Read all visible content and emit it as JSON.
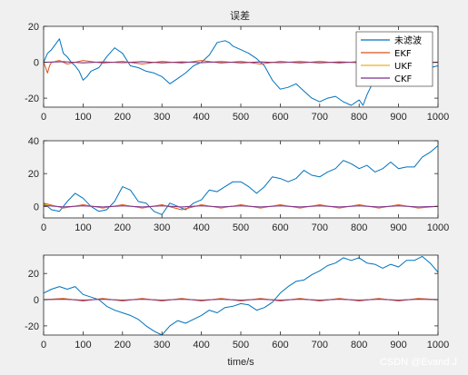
{
  "figure": {
    "title": "误差",
    "xlabel": "time/s",
    "watermark": "CSDN @Evand J"
  },
  "chart_data": [
    {
      "type": "line",
      "title": "误差",
      "xlabel": "",
      "ylabel": "",
      "xlim": [
        0,
        1000
      ],
      "ylim": [
        -25,
        20
      ],
      "xticks": [
        0,
        100,
        200,
        300,
        400,
        500,
        600,
        700,
        800,
        900,
        1000
      ],
      "yticks": [
        -20,
        0,
        20
      ],
      "legend": {
        "position": "top-right",
        "entries": [
          "未滤波",
          "EKF",
          "UKF",
          "CKF"
        ]
      },
      "series": [
        {
          "name": "未滤波",
          "color": "#0072BD",
          "x": [
            0,
            10,
            20,
            30,
            40,
            50,
            60,
            70,
            80,
            90,
            100,
            110,
            120,
            140,
            160,
            180,
            200,
            220,
            240,
            260,
            280,
            300,
            320,
            340,
            360,
            380,
            400,
            420,
            440,
            460,
            470,
            480,
            500,
            520,
            540,
            560,
            580,
            600,
            620,
            640,
            660,
            680,
            700,
            720,
            740,
            760,
            780,
            800,
            810,
            820,
            840,
            860,
            880,
            900,
            920,
            940,
            960,
            980,
            1000
          ],
          "y": [
            0,
            5,
            7,
            10,
            13,
            5,
            3,
            0,
            -2,
            -5,
            -10,
            -8,
            -5,
            -3,
            3,
            8,
            5,
            -2,
            -3,
            -5,
            -6,
            -8,
            -12,
            -9,
            -6,
            -2,
            0,
            4,
            11,
            12,
            11,
            9,
            7,
            5,
            2,
            -2,
            -10,
            -15,
            -14,
            -12,
            -16,
            -20,
            -22,
            -20,
            -19,
            -22,
            -24,
            -21,
            -24,
            -18,
            -9,
            -3,
            -2,
            -3,
            -8,
            -4,
            -1,
            -3,
            -2
          ]
        },
        {
          "name": "EKF",
          "color": "#D95319",
          "x": [
            0,
            5,
            10,
            15,
            20,
            40,
            60,
            80,
            100,
            150,
            200,
            250,
            300,
            350,
            400,
            450,
            500,
            550,
            600,
            650,
            700,
            750,
            800,
            850,
            900,
            950,
            1000
          ],
          "y": [
            0,
            -3,
            -6,
            -2,
            0,
            1,
            -1,
            0,
            1,
            -0.5,
            0.5,
            -1,
            0.5,
            -0.5,
            1,
            -0.5,
            0.5,
            -1,
            0.5,
            -0.5,
            0.5,
            -0.5,
            0.5,
            -0.5,
            0.5,
            -0.5,
            0
          ]
        },
        {
          "name": "UKF",
          "color": "#EDB120",
          "x": [
            0,
            50,
            100,
            150,
            200,
            250,
            300,
            350,
            400,
            450,
            500,
            550,
            600,
            650,
            700,
            750,
            800,
            850,
            900,
            950,
            1000
          ],
          "y": [
            0,
            0.5,
            -0.5,
            0.3,
            -0.3,
            0.5,
            -0.5,
            0.3,
            -0.3,
            0.5,
            -0.5,
            0.3,
            -0.3,
            0.5,
            -0.5,
            0.3,
            -0.3,
            0.5,
            -0.5,
            0.3,
            0
          ]
        },
        {
          "name": "CKF",
          "color": "#7E2F8E",
          "x": [
            0,
            50,
            100,
            150,
            200,
            250,
            300,
            350,
            400,
            450,
            500,
            550,
            600,
            650,
            700,
            750,
            800,
            850,
            900,
            950,
            1000
          ],
          "y": [
            0,
            0.3,
            -0.3,
            0.2,
            -0.2,
            0.3,
            -0.3,
            0.2,
            -0.2,
            0.3,
            -0.3,
            0.2,
            -0.2,
            0.3,
            -0.3,
            0.2,
            -0.2,
            0.3,
            -0.3,
            0.2,
            0
          ]
        }
      ]
    },
    {
      "type": "line",
      "title": "",
      "xlabel": "",
      "ylabel": "",
      "xlim": [
        0,
        1000
      ],
      "ylim": [
        -7,
        40
      ],
      "xticks": [
        0,
        100,
        200,
        300,
        400,
        500,
        600,
        700,
        800,
        900,
        1000
      ],
      "yticks": [
        0,
        20,
        40
      ],
      "series": [
        {
          "name": "未滤波",
          "color": "#0072BD",
          "x": [
            0,
            20,
            40,
            60,
            80,
            100,
            120,
            140,
            160,
            180,
            200,
            220,
            240,
            260,
            280,
            300,
            320,
            340,
            360,
            380,
            400,
            420,
            440,
            460,
            480,
            500,
            520,
            540,
            560,
            580,
            600,
            620,
            640,
            660,
            680,
            700,
            720,
            740,
            760,
            780,
            800,
            820,
            840,
            860,
            880,
            900,
            920,
            940,
            960,
            980,
            1000
          ],
          "y": [
            2,
            -2,
            -3,
            3,
            8,
            5,
            0,
            -3,
            -2,
            3,
            12,
            10,
            3,
            2,
            -3,
            -5,
            2,
            0,
            -2,
            2,
            4,
            10,
            9,
            12,
            15,
            15,
            12,
            8,
            12,
            18,
            17,
            15,
            17,
            22,
            19,
            18,
            21,
            23,
            28,
            26,
            23,
            25,
            21,
            23,
            27,
            23,
            24,
            24,
            30,
            33,
            37
          ]
        },
        {
          "name": "EKF",
          "color": "#D95319",
          "x": [
            0,
            50,
            100,
            150,
            200,
            250,
            300,
            350,
            400,
            450,
            500,
            550,
            600,
            650,
            700,
            750,
            800,
            850,
            900,
            950,
            1000
          ],
          "y": [
            2,
            -1,
            1,
            -1,
            1,
            -1,
            1,
            -2,
            1,
            -1,
            1,
            -1,
            1,
            -1,
            1,
            -1,
            1,
            -1,
            1,
            -1,
            0
          ]
        },
        {
          "name": "UKF",
          "color": "#EDB120",
          "x": [
            0,
            50,
            100,
            150,
            200,
            250,
            300,
            350,
            400,
            450,
            500,
            550,
            600,
            650,
            700,
            750,
            800,
            850,
            900,
            950,
            1000
          ],
          "y": [
            1,
            -0.5,
            0.5,
            -0.5,
            0.5,
            -0.5,
            0.5,
            -0.5,
            0.5,
            -0.5,
            0.5,
            -0.5,
            0.5,
            -0.5,
            0.5,
            -0.5,
            0.5,
            -0.5,
            0.5,
            -0.5,
            0
          ]
        },
        {
          "name": "CKF",
          "color": "#7E2F8E",
          "x": [
            0,
            50,
            100,
            150,
            200,
            250,
            300,
            350,
            400,
            450,
            500,
            550,
            600,
            650,
            700,
            750,
            800,
            850,
            900,
            950,
            1000
          ],
          "y": [
            0.5,
            -0.3,
            0.3,
            -0.3,
            0.3,
            -0.3,
            0.3,
            -0.3,
            0.3,
            -0.3,
            0.3,
            -0.3,
            0.3,
            -0.3,
            0.3,
            -0.3,
            0.3,
            -0.3,
            0.3,
            -0.3,
            0
          ]
        }
      ]
    },
    {
      "type": "line",
      "title": "",
      "xlabel": "time/s",
      "ylabel": "",
      "xlim": [
        0,
        1000
      ],
      "ylim": [
        -27,
        34
      ],
      "xticks": [
        0,
        100,
        200,
        300,
        400,
        500,
        600,
        700,
        800,
        900,
        1000
      ],
      "yticks": [
        -20,
        0,
        20
      ],
      "series": [
        {
          "name": "未滤波",
          "color": "#0072BD",
          "x": [
            0,
            20,
            40,
            60,
            80,
            100,
            120,
            140,
            160,
            180,
            200,
            220,
            240,
            260,
            280,
            300,
            320,
            340,
            360,
            380,
            400,
            420,
            440,
            460,
            480,
            500,
            520,
            540,
            560,
            580,
            600,
            620,
            640,
            660,
            680,
            700,
            720,
            740,
            760,
            780,
            800,
            820,
            840,
            860,
            880,
            900,
            920,
            940,
            960,
            980,
            1000
          ],
          "y": [
            5,
            8,
            10,
            8,
            10,
            4,
            2,
            0,
            -5,
            -8,
            -10,
            -12,
            -15,
            -20,
            -24,
            -27,
            -20,
            -16,
            -18,
            -15,
            -12,
            -8,
            -10,
            -6,
            -5,
            -3,
            -4,
            -8,
            -6,
            -2,
            5,
            10,
            14,
            15,
            19,
            22,
            26,
            28,
            32,
            30,
            32,
            28,
            27,
            24,
            27,
            25,
            30,
            30,
            33,
            28,
            21
          ]
        },
        {
          "name": "EKF",
          "color": "#D95319",
          "x": [
            0,
            50,
            100,
            150,
            200,
            250,
            300,
            350,
            400,
            450,
            500,
            550,
            600,
            650,
            700,
            750,
            800,
            850,
            900,
            950,
            1000
          ],
          "y": [
            0,
            1,
            -1,
            1,
            -1,
            1,
            -1,
            1,
            -1,
            1,
            -1,
            1,
            -1,
            1,
            -1,
            1,
            -1,
            1,
            -1,
            1,
            0
          ]
        },
        {
          "name": "UKF",
          "color": "#EDB120",
          "x": [
            0,
            50,
            100,
            150,
            200,
            250,
            300,
            350,
            400,
            450,
            500,
            550,
            600,
            650,
            700,
            750,
            800,
            850,
            900,
            950,
            1000
          ],
          "y": [
            0,
            0.5,
            -0.5,
            0.5,
            -0.5,
            0.5,
            -0.5,
            0.5,
            -0.5,
            0.5,
            -0.5,
            0.5,
            -0.5,
            0.5,
            -0.5,
            0.5,
            -0.5,
            0.5,
            -0.5,
            0.5,
            0
          ]
        },
        {
          "name": "CKF",
          "color": "#7E2F8E",
          "x": [
            0,
            50,
            100,
            150,
            200,
            250,
            300,
            350,
            400,
            450,
            500,
            550,
            600,
            650,
            700,
            750,
            800,
            850,
            900,
            950,
            1000
          ],
          "y": [
            0,
            0.3,
            -0.3,
            0.3,
            -0.3,
            0.3,
            -0.3,
            0.3,
            -0.3,
            0.3,
            -0.3,
            0.3,
            -0.3,
            0.3,
            -0.3,
            0.3,
            -0.3,
            0.3,
            -0.3,
            0.3,
            0
          ]
        }
      ]
    }
  ]
}
